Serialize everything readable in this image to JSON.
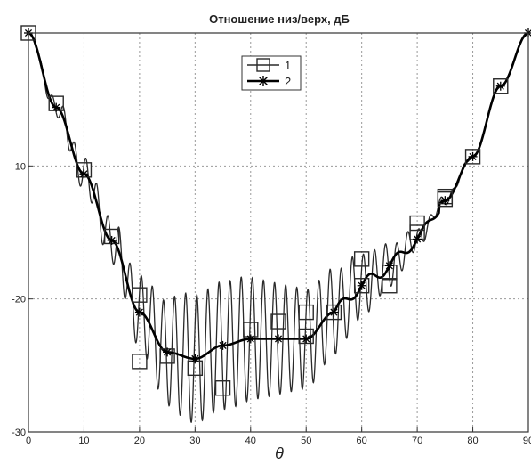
{
  "chart_data": {
    "type": "line",
    "title": "Отношение низ/верх, дБ",
    "xlabel": "θ",
    "ylabel": "",
    "xlim": [
      0,
      90
    ],
    "ylim": [
      -30,
      0
    ],
    "grid": true,
    "legend_position": "top-center",
    "x_ticks": [
      "0",
      "10",
      "20",
      "30",
      "40",
      "50",
      "60",
      "70",
      "80",
      "90"
    ],
    "y_ticks": [
      "-10",
      "-20",
      "-30"
    ],
    "series": [
      {
        "name": "1",
        "marker": "square",
        "color": "#2a2a2a",
        "x": [
          0,
          5,
          10,
          15,
          20,
          25,
          30,
          35,
          40,
          45,
          50,
          55,
          60,
          65,
          70,
          75,
          80,
          85
        ],
        "y": [
          0,
          -5.3,
          -10.3,
          -15.3,
          -19.7,
          -24.3,
          -25.2,
          -26.7,
          -22.3,
          -21.7,
          -21,
          -21,
          -17,
          -19,
          -14.3,
          -12.3,
          -9.3,
          -4
        ]
      },
      {
        "name": "2",
        "marker": "star",
        "color": "#000000",
        "x": [
          0,
          5,
          10,
          15,
          20,
          25,
          30,
          35,
          40,
          45,
          50,
          55,
          60,
          65,
          70,
          75,
          80,
          85,
          90
        ],
        "y": [
          0,
          -5.6,
          -10.6,
          -15.6,
          -21,
          -24,
          -24.5,
          -23.5,
          -23,
          -23,
          -23,
          -21,
          -19,
          -17.5,
          -15.5,
          -12.6,
          -9.3,
          -4,
          0
        ]
      }
    ],
    "markers": {
      "1": {
        "x": [
          0,
          5,
          10,
          15,
          20,
          20,
          25,
          30,
          35,
          40,
          45,
          50,
          50,
          55,
          60,
          60,
          65,
          65,
          70,
          70,
          75,
          75,
          80,
          85
        ],
        "y": [
          0,
          -5.3,
          -10.3,
          -15.3,
          -19.7,
          -24.7,
          -24.3,
          -25.2,
          -26.7,
          -22.3,
          -21.7,
          -21,
          -22.8,
          -21,
          -17,
          -19,
          -18,
          -19,
          -14.3,
          -15,
          -12.3,
          -12.5,
          -9.3,
          -4
        ]
      },
      "2": {
        "x": [
          0,
          5,
          10,
          15,
          20,
          25,
          30,
          35,
          40,
          45,
          50,
          55,
          60,
          65,
          70,
          75,
          80,
          85,
          90
        ],
        "y": [
          0,
          -5.6,
          -10.6,
          -15.6,
          -21,
          -24,
          -24.5,
          -23.5,
          -23,
          -23,
          -23,
          -21,
          -19,
          -17.5,
          -15.5,
          -12.6,
          -9.3,
          -4,
          0
        ]
      }
    }
  }
}
